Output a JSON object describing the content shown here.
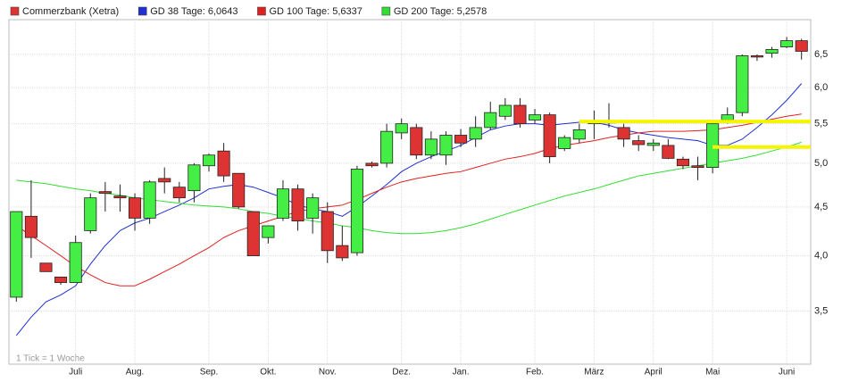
{
  "chart_data": {
    "type": "candlestick",
    "log_scale": true,
    "grid": true,
    "legend": "top-left",
    "annotation": "1 Tick = 1 Woche",
    "categories": [
      null,
      null,
      null,
      null,
      "Juli",
      null,
      null,
      null,
      "Aug.",
      null,
      null,
      null,
      null,
      "Sep.",
      null,
      null,
      null,
      "Okt.",
      null,
      null,
      null,
      "Nov.",
      null,
      null,
      null,
      null,
      "Dez.",
      null,
      null,
      null,
      "Jan.",
      null,
      null,
      null,
      null,
      "Feb.",
      null,
      null,
      null,
      "März",
      null,
      null,
      null,
      "April",
      null,
      null,
      null,
      "Mai",
      null,
      null,
      null,
      null,
      "Juni",
      null
    ],
    "ylim": [
      3.08,
      7.07
    ],
    "yticks": [
      {
        "value": 3.5,
        "label": "3,5"
      },
      {
        "value": 4.0,
        "label": "4,0"
      },
      {
        "value": 4.5,
        "label": "4,5"
      },
      {
        "value": 5.0,
        "label": "5,0"
      },
      {
        "value": 5.5,
        "label": "5,5"
      },
      {
        "value": 6.0,
        "label": "6,0"
      },
      {
        "value": 6.5,
        "label": "6,5"
      }
    ],
    "series": [
      {
        "name": "Commerzbank (Xetra)",
        "color": "#dd3333",
        "up_color": "#44ee44",
        "open": [
          3.62,
          4.4,
          3.93,
          3.8,
          3.75,
          4.25,
          4.67,
          4.62,
          4.6,
          4.38,
          4.82,
          4.72,
          4.68,
          4.97,
          5.15,
          4.88,
          4.45,
          4.18,
          4.38,
          4.7,
          4.38,
          4.45,
          4.1,
          4.03,
          5.0,
          5.0,
          5.38,
          5.45,
          5.1,
          5.1,
          5.35,
          5.3,
          5.45,
          5.6,
          5.75,
          5.55,
          5.62,
          5.18,
          5.3,
          5.5,
          5.53,
          5.45,
          5.28,
          5.22,
          5.22,
          5.05,
          4.97,
          4.95,
          5.55,
          5.65,
          6.48,
          6.52,
          6.62,
          6.72
        ],
        "high": [
          4.45,
          4.8,
          3.93,
          3.8,
          4.2,
          4.65,
          4.78,
          4.75,
          4.65,
          4.8,
          4.95,
          4.78,
          5.0,
          5.12,
          5.25,
          4.88,
          4.45,
          4.3,
          4.8,
          4.75,
          4.65,
          4.55,
          4.3,
          4.97,
          5.02,
          5.5,
          5.57,
          5.5,
          5.4,
          5.4,
          5.43,
          5.6,
          5.8,
          5.85,
          5.85,
          5.7,
          5.65,
          5.35,
          5.5,
          5.68,
          5.78,
          5.5,
          5.35,
          5.3,
          5.3,
          5.08,
          5.08,
          5.55,
          5.72,
          6.5,
          6.5,
          6.62,
          6.78,
          6.75
        ],
        "low": [
          3.58,
          3.98,
          3.85,
          3.73,
          3.75,
          4.22,
          4.45,
          4.45,
          4.25,
          4.32,
          4.65,
          4.55,
          4.55,
          4.9,
          4.78,
          4.48,
          4.0,
          4.12,
          4.35,
          4.25,
          4.22,
          3.93,
          3.95,
          4.0,
          4.95,
          4.95,
          5.3,
          5.05,
          5.05,
          4.98,
          5.2,
          5.2,
          5.42,
          5.55,
          5.45,
          5.5,
          5.0,
          5.15,
          5.25,
          5.3,
          5.45,
          5.2,
          5.15,
          5.15,
          5.05,
          4.93,
          4.8,
          4.88,
          5.5,
          5.6,
          6.4,
          6.45,
          6.6,
          6.42
        ],
        "close": [
          4.45,
          4.18,
          3.85,
          3.75,
          4.13,
          4.6,
          4.65,
          4.6,
          4.38,
          4.78,
          4.78,
          4.6,
          4.98,
          5.1,
          4.85,
          4.5,
          4.0,
          4.3,
          4.7,
          4.35,
          4.6,
          4.05,
          3.98,
          4.93,
          4.97,
          5.4,
          5.5,
          5.1,
          5.3,
          5.35,
          5.25,
          5.45,
          5.65,
          5.75,
          5.5,
          5.62,
          5.08,
          5.32,
          5.42,
          5.52,
          5.51,
          5.3,
          5.23,
          5.25,
          5.06,
          4.97,
          4.95,
          5.5,
          5.62,
          6.48,
          6.46,
          6.58,
          6.72,
          6.55
        ]
      },
      {
        "name": "GD 38 Tage: 6,0643",
        "color": "#1f2fd0",
        "values": [
          3.3,
          3.45,
          3.58,
          3.64,
          3.72,
          3.92,
          4.1,
          4.25,
          4.33,
          4.38,
          4.45,
          4.52,
          4.6,
          4.7,
          4.73,
          4.75,
          4.72,
          4.66,
          4.6,
          4.52,
          4.48,
          4.45,
          4.4,
          4.5,
          4.62,
          4.75,
          4.9,
          5.0,
          5.08,
          5.15,
          5.22,
          5.32,
          5.42,
          5.47,
          5.5,
          5.5,
          5.48,
          5.5,
          5.52,
          5.52,
          5.48,
          5.42,
          5.38,
          5.35,
          5.32,
          5.3,
          5.28,
          5.22,
          5.22,
          5.3,
          5.45,
          5.62,
          5.82,
          6.06
        ]
      },
      {
        "name": "GD 100 Tage: 5,6337",
        "color": "#e02020",
        "values": [
          4.3,
          4.2,
          4.1,
          4.0,
          3.9,
          3.82,
          3.75,
          3.72,
          3.72,
          3.78,
          3.85,
          3.92,
          4.0,
          4.08,
          4.18,
          4.25,
          4.3,
          4.35,
          4.4,
          4.45,
          4.48,
          4.5,
          4.52,
          4.58,
          4.65,
          4.72,
          4.78,
          4.82,
          4.85,
          4.88,
          4.9,
          4.95,
          5.0,
          5.05,
          5.08,
          5.12,
          5.18,
          5.22,
          5.25,
          5.28,
          5.32,
          5.35,
          5.38,
          5.4,
          5.4,
          5.4,
          5.41,
          5.42,
          5.45,
          5.48,
          5.52,
          5.56,
          5.6,
          5.63
        ]
      },
      {
        "name": "GD 200 Tage: 5,2578",
        "color": "#33dd33",
        "values": [
          4.8,
          4.78,
          4.76,
          4.73,
          4.7,
          4.68,
          4.65,
          4.63,
          4.6,
          4.58,
          4.56,
          4.54,
          4.52,
          4.51,
          4.5,
          4.48,
          4.45,
          4.43,
          4.4,
          4.38,
          4.35,
          4.33,
          4.3,
          4.28,
          4.25,
          4.23,
          4.22,
          4.22,
          4.23,
          4.25,
          4.28,
          4.32,
          4.37,
          4.42,
          4.47,
          4.52,
          4.57,
          4.62,
          4.66,
          4.7,
          4.75,
          4.8,
          4.85,
          4.88,
          4.91,
          4.94,
          4.97,
          5.0,
          5.03,
          5.06,
          5.1,
          5.15,
          5.2,
          5.26
        ]
      }
    ],
    "hlines": [
      {
        "value": 5.53,
        "start": 38,
        "color": "#f5f500"
      },
      {
        "value": 5.2,
        "start": 47,
        "color": "#f5f500"
      }
    ]
  }
}
